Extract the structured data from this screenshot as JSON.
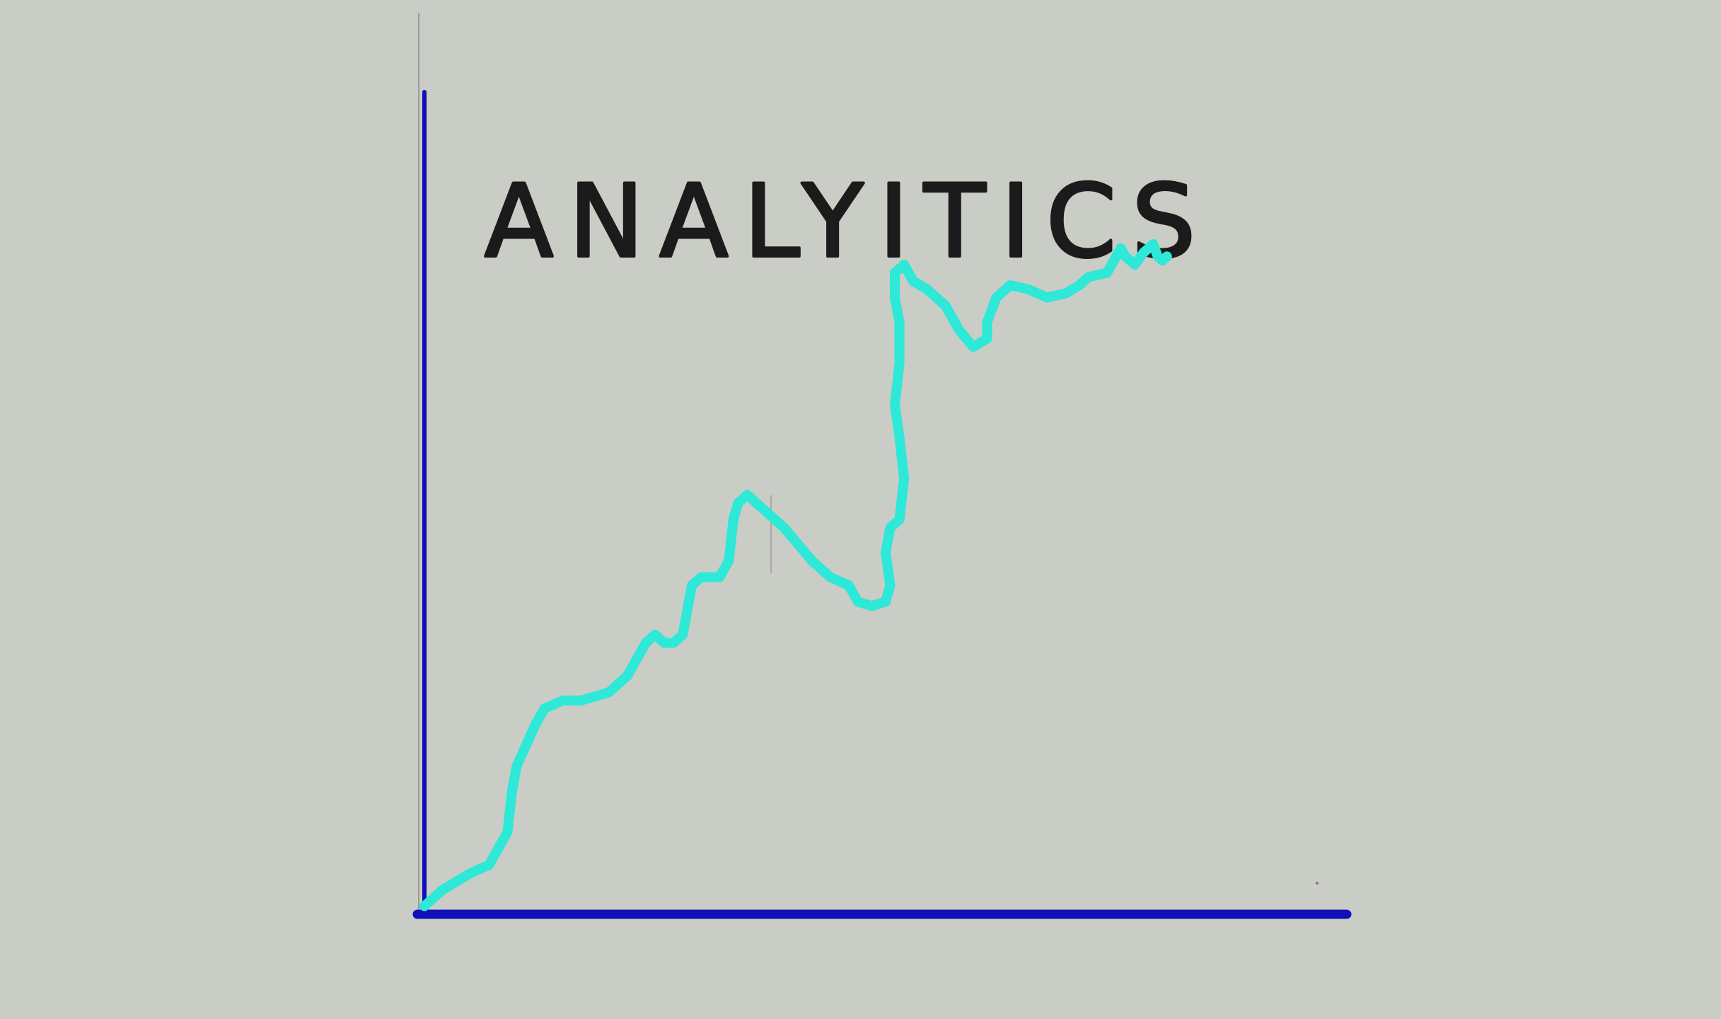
{
  "colors": {
    "background": "#c9cdc6",
    "axis": "#1010b8",
    "faint_line": "#9a9a9a",
    "series": "#2ee8d8",
    "title": "#1b1b1b"
  },
  "chart_data": {
    "type": "line",
    "title": "ANALYITICS",
    "xlabel": "",
    "ylabel": "",
    "xlim": [
      0,
      100
    ],
    "ylim": [
      0,
      100
    ],
    "grid": false,
    "legend": "none",
    "series": [
      {
        "values": [
          [
            0,
            1
          ],
          [
            2,
            3
          ],
          [
            5,
            5
          ],
          [
            7,
            6
          ],
          [
            9,
            10
          ],
          [
            9.5,
            15
          ],
          [
            10,
            18
          ],
          [
            12,
            23
          ],
          [
            13,
            25
          ],
          [
            15,
            26
          ],
          [
            17,
            26
          ],
          [
            20,
            27
          ],
          [
            22,
            29
          ],
          [
            23,
            31
          ],
          [
            24,
            33
          ],
          [
            25,
            34
          ],
          [
            26,
            33
          ],
          [
            27,
            33
          ],
          [
            28,
            34
          ],
          [
            28.5,
            37
          ],
          [
            29,
            40
          ],
          [
            30,
            41
          ],
          [
            32,
            41
          ],
          [
            33,
            43
          ],
          [
            33.5,
            48
          ],
          [
            34,
            50
          ],
          [
            35,
            51
          ],
          [
            37,
            49
          ],
          [
            39,
            47
          ],
          [
            42,
            43
          ],
          [
            44,
            41
          ],
          [
            46,
            40
          ],
          [
            47,
            38
          ],
          [
            48.5,
            37.5
          ],
          [
            50,
            38
          ],
          [
            50.5,
            40
          ],
          [
            50,
            44
          ],
          [
            50.5,
            47
          ],
          [
            51.5,
            48
          ],
          [
            52,
            53
          ],
          [
            51.5,
            58
          ],
          [
            51,
            62
          ],
          [
            51.5,
            67
          ],
          [
            51.5,
            72
          ],
          [
            51,
            75
          ],
          [
            51,
            78
          ],
          [
            52,
            79
          ],
          [
            53,
            77
          ],
          [
            54.5,
            76
          ],
          [
            56.5,
            74
          ],
          [
            58,
            71
          ],
          [
            59.5,
            69
          ],
          [
            61,
            70
          ],
          [
            61,
            72
          ],
          [
            62,
            75
          ],
          [
            63.5,
            76.5
          ],
          [
            65.5,
            76
          ],
          [
            67.5,
            75
          ],
          [
            69.5,
            75.5
          ],
          [
            71,
            76.5
          ],
          [
            72,
            77.5
          ],
          [
            74,
            78
          ],
          [
            75,
            80
          ],
          [
            75.5,
            81
          ],
          [
            76,
            80
          ],
          [
            77,
            79
          ],
          [
            78,
            80.5
          ],
          [
            79,
            81.5
          ],
          [
            79.5,
            80
          ],
          [
            80,
            79.5
          ],
          [
            80.5,
            80
          ]
        ]
      }
    ]
  }
}
